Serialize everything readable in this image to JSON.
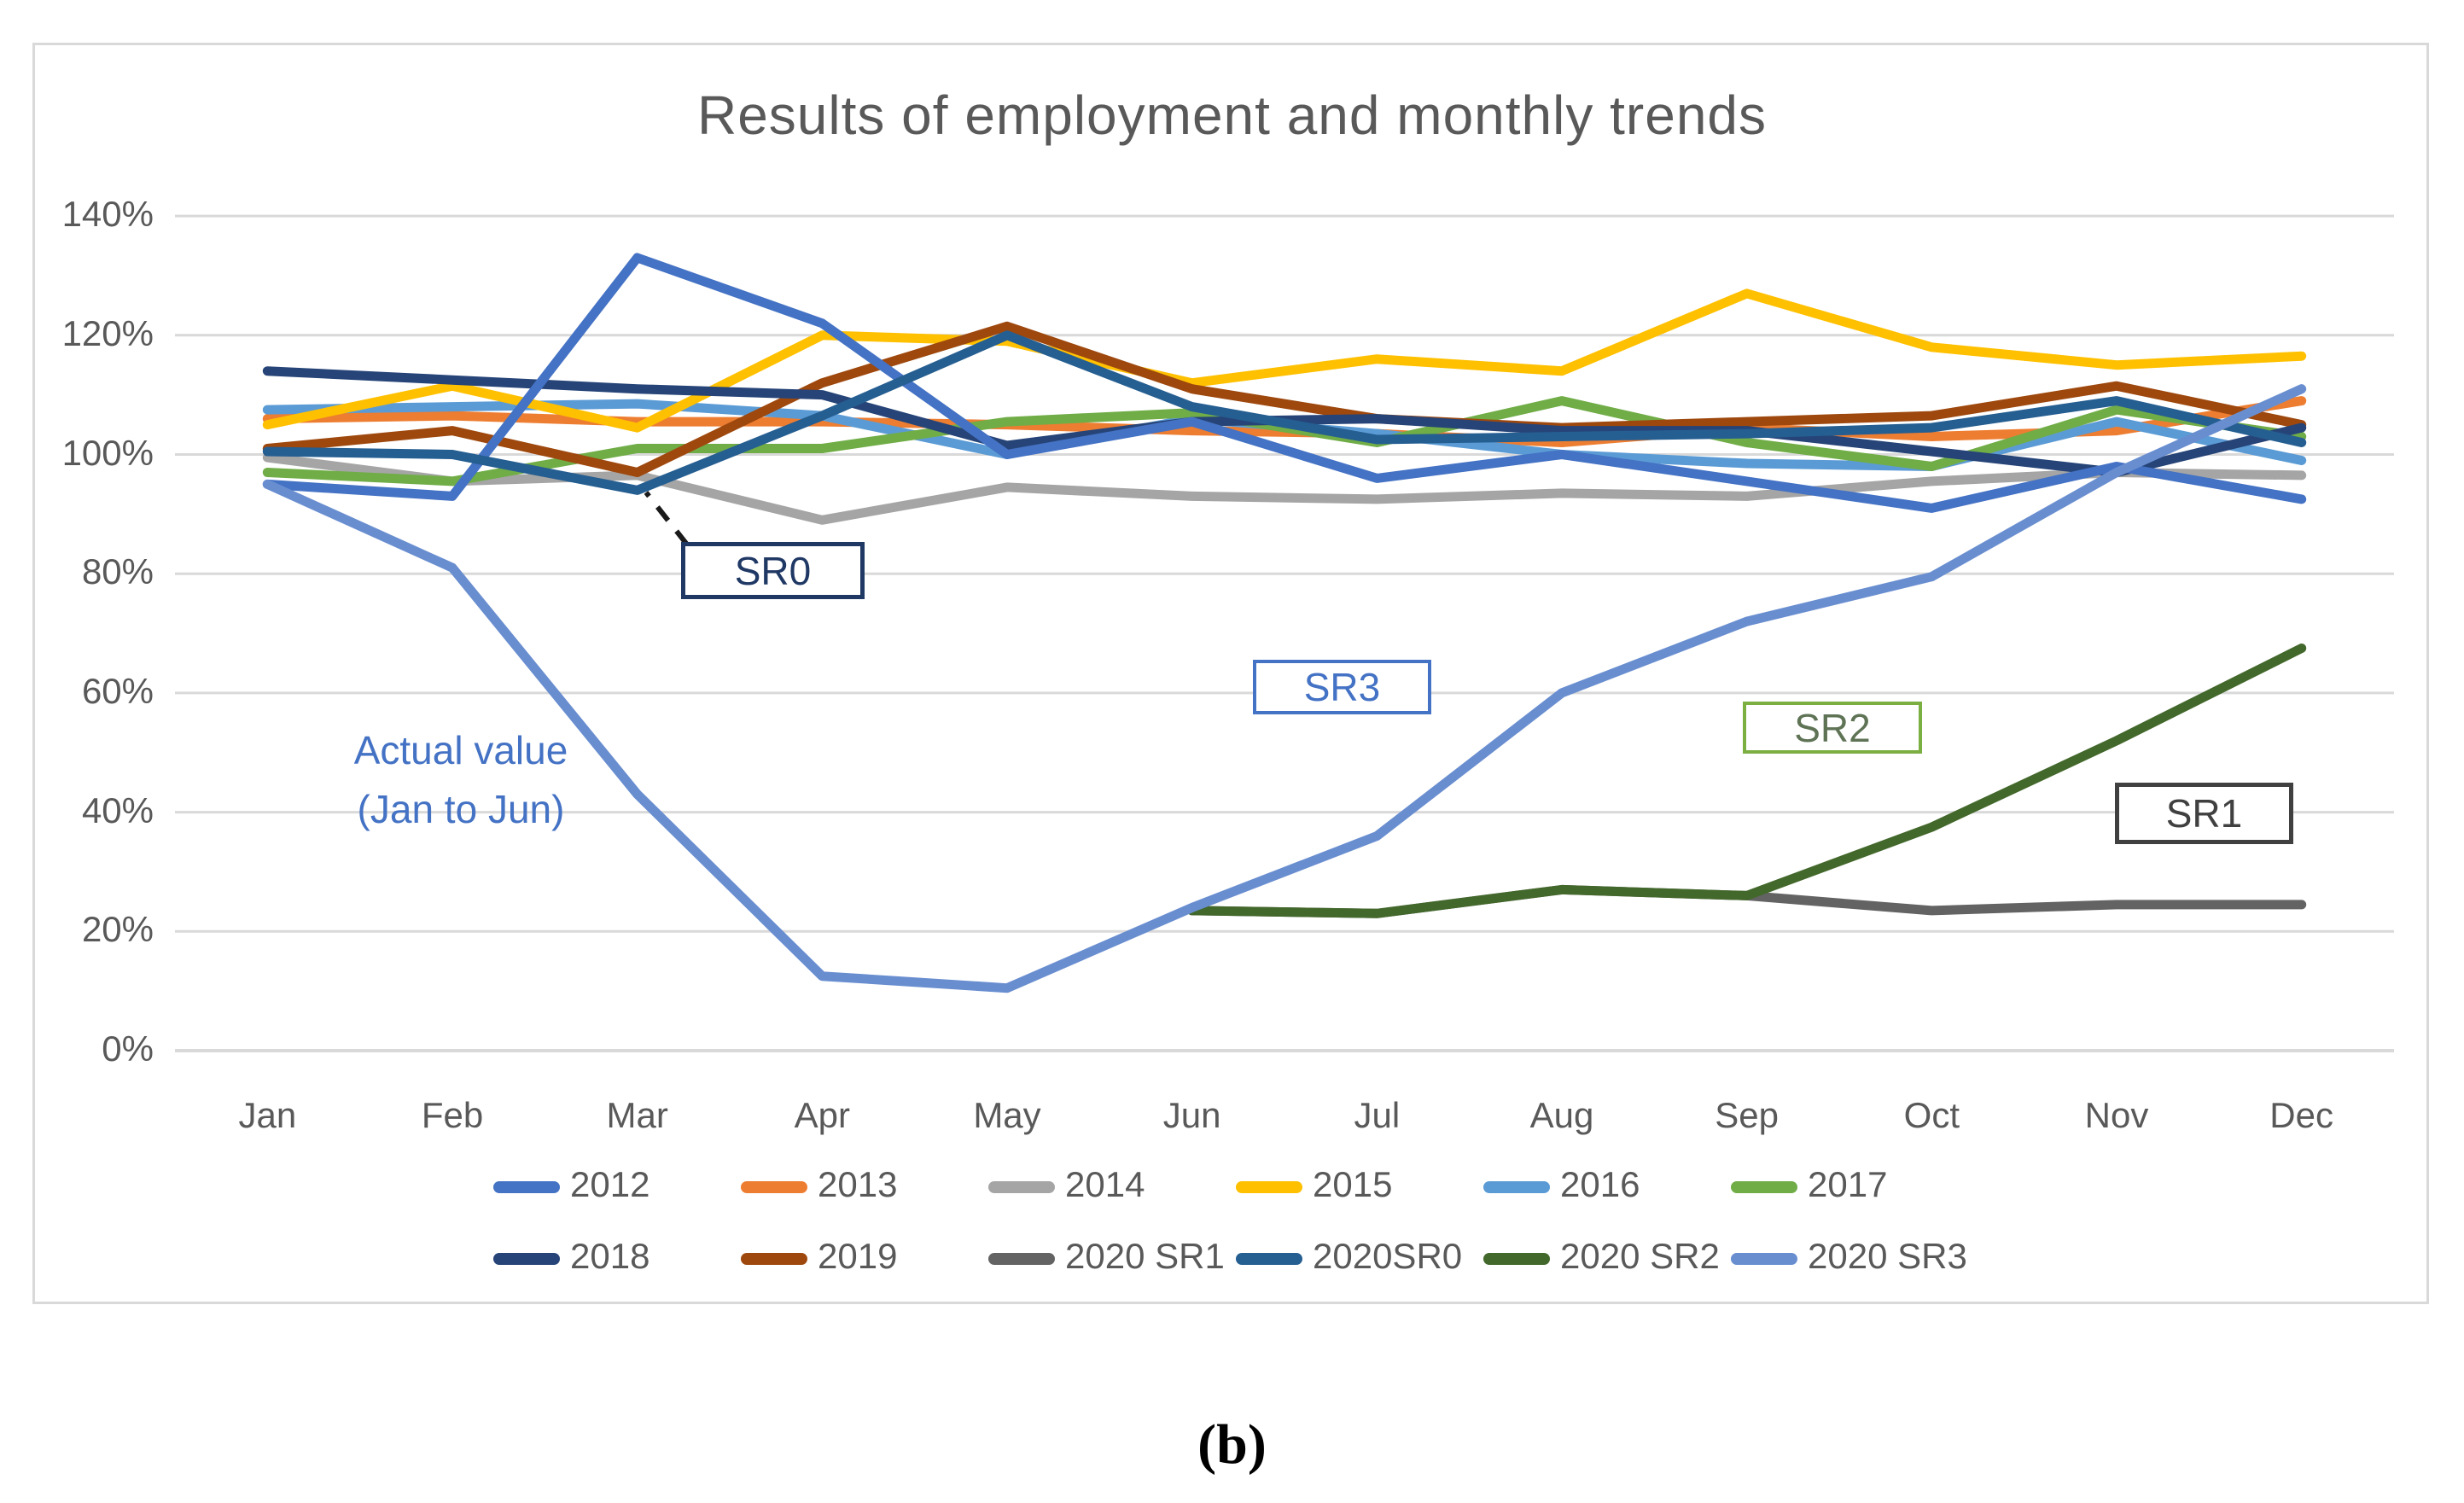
{
  "figure": {
    "caption": "(b)"
  },
  "chart_data": {
    "type": "line",
    "title": "Results of employment and monthly trends",
    "categories": [
      "Jan",
      "Feb",
      "Mar",
      "Apr",
      "May",
      "Jun",
      "Jul",
      "Aug",
      "Sep",
      "Oct",
      "Nov",
      "Dec"
    ],
    "y_axis": {
      "unit": "%",
      "min": 0,
      "max": 140,
      "tick_step": 20,
      "tick_labels": [
        "0%",
        "20%",
        "40%",
        "60%",
        "80%",
        "100%",
        "120%",
        "140%"
      ]
    },
    "grid": true,
    "legend_position": "bottom",
    "series": [
      {
        "name": "2012",
        "color": "#4472c4",
        "values": [
          95,
          93,
          133,
          122,
          100,
          105.5,
          96,
          100,
          95.5,
          91,
          98,
          92.5
        ]
      },
      {
        "name": "2013",
        "color": "#ed7d31",
        "values": [
          106,
          106.5,
          105.5,
          105.5,
          105,
          104,
          103.5,
          102,
          104.5,
          103,
          104,
          109
        ]
      },
      {
        "name": "2014",
        "color": "#a5a5a5",
        "values": [
          99.5,
          95.5,
          96.5,
          89,
          94.5,
          93,
          92.5,
          93.5,
          93,
          95.5,
          97,
          96.5
        ]
      },
      {
        "name": "2015",
        "color": "#ffc000",
        "values": [
          105,
          111.5,
          104.5,
          120,
          119,
          112,
          116,
          114,
          127,
          118,
          115,
          116.5
        ]
      },
      {
        "name": "2016",
        "color": "#5b9bd5",
        "values": [
          107.5,
          108,
          108.5,
          106.5,
          100,
          106,
          103.5,
          100,
          98.5,
          98,
          105.5,
          99
        ]
      },
      {
        "name": "2017",
        "color": "#70ad47",
        "values": [
          97,
          95.5,
          101,
          101,
          105.5,
          107,
          102,
          109,
          102,
          98,
          107.5,
          103
        ]
      },
      {
        "name": "2018",
        "color": "#264478",
        "values": [
          114,
          112.5,
          111,
          110,
          101.5,
          105.5,
          106,
          104,
          104,
          100.5,
          97,
          104.5
        ]
      },
      {
        "name": "2019",
        "color": "#9e480e",
        "values": [
          101,
          104,
          97,
          112,
          121.5,
          111,
          106,
          104.5,
          105.5,
          106.5,
          111.5,
          105
        ]
      },
      {
        "name": "2020 SR1",
        "color": "#636363",
        "values": [
          null,
          null,
          null,
          null,
          null,
          23.5,
          23,
          27,
          26,
          23.5,
          24.5,
          24.5
        ]
      },
      {
        "name": "2020SR0",
        "color": "#255e91",
        "values": [
          100.5,
          100,
          94,
          106.5,
          120,
          108,
          102.5,
          103,
          103.5,
          104.5,
          109,
          102
        ]
      },
      {
        "name": "2020 SR2",
        "color": "#43682b",
        "values": [
          null,
          null,
          null,
          null,
          null,
          23.5,
          23,
          27,
          26,
          37.5,
          52,
          67.5
        ]
      },
      {
        "name": "2020 SR3",
        "color": "#698ed0",
        "values": [
          95,
          81,
          43,
          12.5,
          10.5,
          24,
          36,
          60,
          72,
          79.5,
          97,
          111
        ]
      }
    ],
    "annotations": [
      {
        "id": "sr0",
        "label": "SR0"
      },
      {
        "id": "sr3",
        "label": "SR3"
      },
      {
        "id": "sr2",
        "label": "SR2"
      },
      {
        "id": "sr1",
        "label": "SR1"
      },
      {
        "id": "actual-value",
        "label_line1": "Actual value",
        "label_line2": "(Jan to Jun)"
      }
    ],
    "colors": {
      "gridline": "#d9d9d9",
      "axis_text": "#595959",
      "title_text": "#595959"
    }
  }
}
